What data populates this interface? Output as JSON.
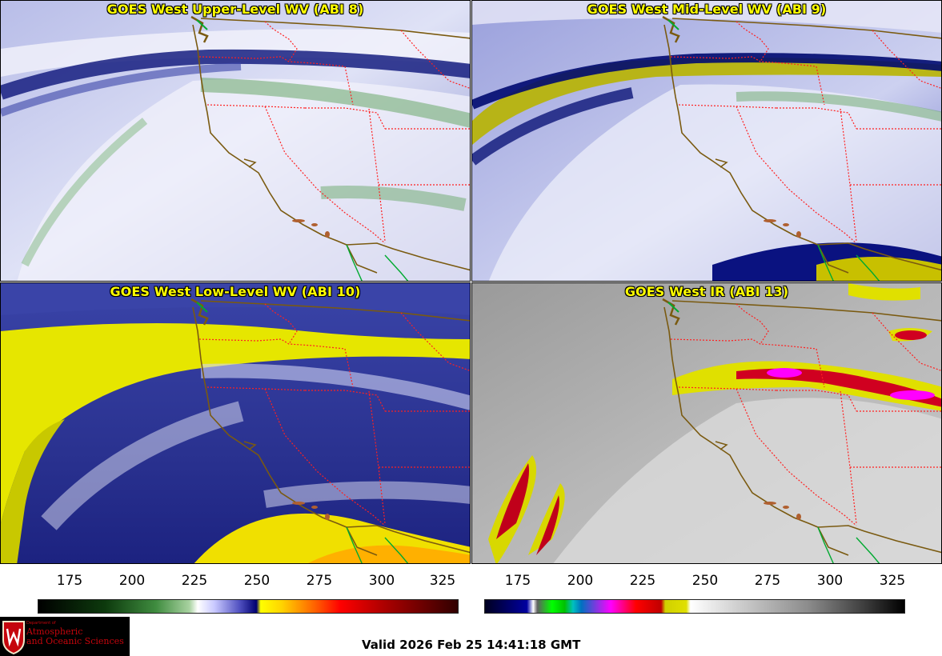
{
  "panels": [
    {
      "title": "GOES West Upper-Level WV (ABI 8)"
    },
    {
      "title": "GOES West Mid-Level WV (ABI 9)"
    },
    {
      "title": "GOES West Low-Level WV (ABI 10)"
    },
    {
      "title": "GOES West IR (ABI 13)"
    }
  ],
  "colorbars": {
    "wv": {
      "ticks": [
        "175",
        "200",
        "225",
        "250",
        "275",
        "300",
        "325"
      ]
    },
    "ir": {
      "ticks": [
        "175",
        "200",
        "225",
        "250",
        "275",
        "300",
        "325"
      ]
    }
  },
  "logo": {
    "dept": "Department of",
    "line1": "Atmospheric",
    "line2": "and Oceanic Sciences"
  },
  "valid_time": "Valid 2026 Feb 25 14:41:18 GMT",
  "colors": {
    "coast": "#7a5a10",
    "state_borders": "#ff2020",
    "mexico_border": "#00aa30",
    "title_text": "#ffff00"
  }
}
